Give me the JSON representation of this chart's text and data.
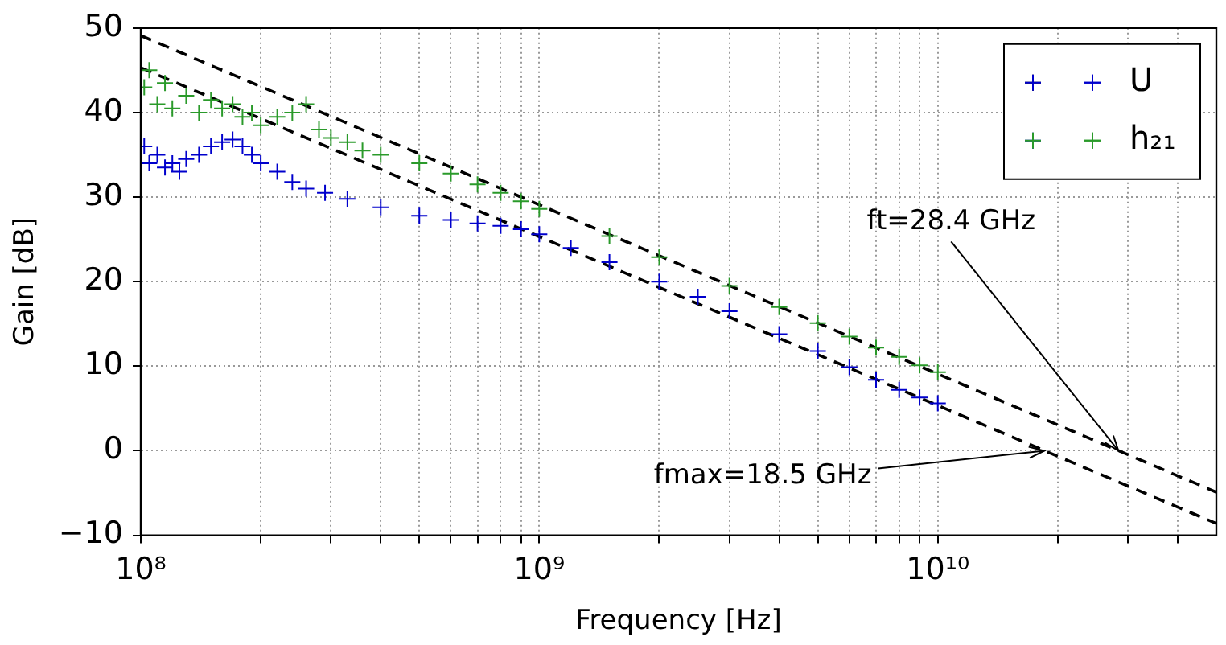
{
  "chart_data": {
    "type": "scatter",
    "xlabel": "Frequency [Hz]",
    "ylabel": "Gain [dB]",
    "log": "x",
    "grid": true,
    "legend": "top right",
    "xlim": [
      100000000,
      50000000000
    ],
    "xticks": [
      {
        "value": 100000000,
        "label": "10⁸"
      },
      {
        "value": 200000000,
        "label": null
      },
      {
        "value": 300000000,
        "label": null
      },
      {
        "value": 400000000,
        "label": null
      },
      {
        "value": 500000000,
        "label": null
      },
      {
        "value": 600000000,
        "label": null
      },
      {
        "value": 700000000,
        "label": null
      },
      {
        "value": 800000000,
        "label": null
      },
      {
        "value": 900000000,
        "label": null
      },
      {
        "value": 1000000000,
        "label": "10⁹"
      },
      {
        "value": 2000000000,
        "label": null
      },
      {
        "value": 3000000000,
        "label": null
      },
      {
        "value": 4000000000,
        "label": null
      },
      {
        "value": 5000000000,
        "label": null
      },
      {
        "value": 6000000000,
        "label": null
      },
      {
        "value": 7000000000,
        "label": null
      },
      {
        "value": 8000000000,
        "label": null
      },
      {
        "value": 9000000000,
        "label": null
      },
      {
        "value": 10000000000,
        "label": "10¹⁰"
      },
      {
        "value": 20000000000,
        "label": null
      },
      {
        "value": 30000000000,
        "label": null
      },
      {
        "value": 40000000000,
        "label": null
      }
    ],
    "ylim": [
      -10,
      50
    ],
    "yticks": [
      {
        "value": -10,
        "label": "−10"
      },
      0,
      10,
      20,
      30,
      40,
      50
    ],
    "annotations": [
      {
        "text": "ft=28.4 GHz",
        "x": 28400000000,
        "y": 0
      },
      {
        "text": "fmax=18.5 GHz",
        "x": 18500000000,
        "y": 0
      }
    ],
    "series": [
      {
        "name": "U",
        "type": "scatter",
        "marker": "cross",
        "color": "#0000cc",
        "x": [
          102000000,
          105000000,
          110000000,
          115000000,
          120000000,
          125000000,
          130000000,
          140000000,
          150000000,
          160000000,
          170000000,
          180000000,
          190000000,
          200000000,
          220000000,
          240000000,
          260000000,
          290000000,
          330000000,
          400000000,
          500000000,
          600000000,
          700000000,
          800000000,
          900000000,
          1000000000,
          1200000000,
          1500000000,
          2000000000,
          2500000000,
          3000000000,
          4000000000,
          5000000000,
          6000000000,
          7000000000,
          8000000000,
          9000000000,
          10000000000
        ],
        "values": [
          36,
          34,
          35,
          33.5,
          34,
          33,
          34.5,
          35,
          36,
          36.5,
          36.8,
          36,
          35,
          34,
          33,
          31.8,
          31,
          30.5,
          29.8,
          28.8,
          27.8,
          27.3,
          26.9,
          26.6,
          26.2,
          25.6,
          24,
          22.3,
          20,
          18.2,
          16.5,
          13.8,
          11.8,
          9.9,
          8.4,
          7.2,
          6.3,
          5.6
        ]
      },
      {
        "name": "h₂₁",
        "type": "scatter",
        "marker": "cross",
        "color": "#2a9a2a",
        "x": [
          102000000,
          105000000,
          110000000,
          115000000,
          120000000,
          130000000,
          140000000,
          150000000,
          160000000,
          170000000,
          180000000,
          190000000,
          200000000,
          220000000,
          240000000,
          260000000,
          280000000,
          300000000,
          330000000,
          360000000,
          400000000,
          500000000,
          600000000,
          700000000,
          800000000,
          900000000,
          1000000000,
          1500000000,
          2000000000,
          3000000000,
          4000000000,
          5000000000,
          6000000000,
          7000000000,
          8000000000,
          9000000000,
          10000000000
        ],
        "values": [
          43,
          45,
          41,
          43.5,
          40.5,
          42,
          40,
          41.5,
          40.5,
          41,
          39.5,
          40,
          38.5,
          39.5,
          40,
          41,
          38,
          37,
          36.5,
          35.5,
          35,
          34,
          32.8,
          31.5,
          30.5,
          29.5,
          28.6,
          25.4,
          22.9,
          19.5,
          17,
          15.1,
          13.5,
          12.2,
          11.1,
          10.1,
          9.3
        ]
      },
      {
        "type": "line",
        "marker": "none",
        "line_style": "dashed",
        "color": "#000000",
        "x": [
          100000000,
          50000000000
        ],
        "values": [
          49.1,
          -4.9
        ]
      },
      {
        "type": "line",
        "marker": "none",
        "line_style": "dashed",
        "color": "#000000",
        "x": [
          100000000,
          50000000000
        ],
        "values": [
          45.3,
          -8.6
        ]
      }
    ]
  }
}
